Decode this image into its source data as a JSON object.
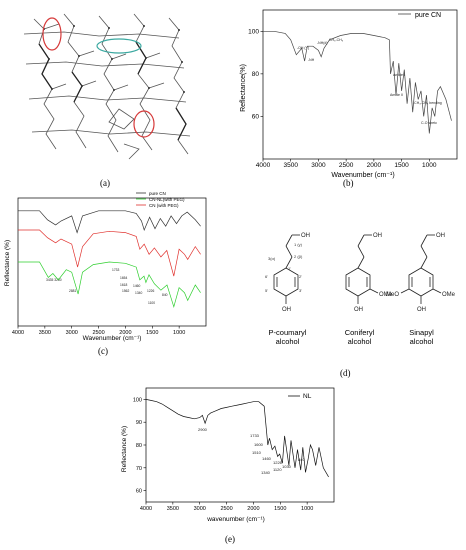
{
  "figure": {
    "labels": {
      "a": "(a)",
      "b": "(b)",
      "c": "(c)",
      "d": "(d)",
      "e": "(e)"
    }
  },
  "panel_b": {
    "legend": "pure CN",
    "ylabel": "Reflectance(%)",
    "xlabel": "Wavenumber (cm⁻¹)",
    "annotations": [
      "-OH (Y)",
      "-NH",
      "-NH(d)",
      "CH₃-CH₃",
      "Amide I",
      "Amide II",
      "-CH₃-CH₃ bending",
      "C-O stretc"
    ]
  },
  "panel_c": {
    "legend": [
      "pure CN",
      "CN-NL(with PEG)",
      "CN (with PEG)"
    ],
    "ylabel": "Reflectance (%)",
    "xlabel": "Wavenumber (cm⁻¹)",
    "annotations": [
      "3435 3250",
      "2881",
      "1733",
      "1654",
      "1618",
      "1562",
      "1460",
      "1340",
      "1226",
      "1100",
      "840"
    ]
  },
  "panel_d": {
    "structures": [
      {
        "name": "P-coumaryl\nalcohol"
      },
      {
        "name": "Coniferyl\nalcohol"
      },
      {
        "name": "Sinapyl\nalcohol"
      }
    ],
    "atom_labels": [
      "OH",
      "OMe",
      "MeO",
      "1 (γ)",
      "2 (β)",
      "3(α)",
      "1'",
      "2'",
      "3'",
      "5'",
      "6'"
    ]
  },
  "chart_data": [
    {
      "type": "line",
      "panel": "b",
      "x_reversed": true,
      "xlim": [
        4000,
        500
      ],
      "ylim": [
        40,
        110
      ],
      "xticks": [
        4000,
        3500,
        3000,
        2500,
        2000,
        1500,
        1000
      ],
      "yticks": [
        60,
        80,
        100
      ],
      "series": [
        {
          "name": "pure CN",
          "color": "#444444",
          "x": [
            4000,
            3800,
            3600,
            3500,
            3400,
            3300,
            3250,
            3200,
            3100,
            3000,
            2950,
            2900,
            2800,
            2600,
            2400,
            2200,
            2000,
            1800,
            1720,
            1700,
            1650,
            1600,
            1550,
            1500,
            1450,
            1400,
            1350,
            1300,
            1250,
            1200,
            1150,
            1100,
            1050,
            1000,
            950,
            900,
            850,
            800,
            700,
            600
          ],
          "y": [
            100,
            100,
            99,
            96,
            89,
            92,
            86,
            93,
            93,
            91,
            88,
            92,
            96,
            98,
            99,
            99,
            98,
            97,
            96,
            80,
            86,
            70,
            85,
            72,
            82,
            66,
            78,
            62,
            76,
            68,
            72,
            60,
            70,
            52,
            64,
            60,
            72,
            74,
            68,
            58
          ]
        }
      ]
    },
    {
      "type": "line",
      "panel": "c",
      "x_reversed": true,
      "xlim": [
        4000,
        500
      ],
      "xticks": [
        4000,
        3500,
        3000,
        2500,
        2000,
        1500,
        1000
      ],
      "yticks": [],
      "series": [
        {
          "name": "pure CN",
          "color": "#333333",
          "x": [
            4000,
            3600,
            3450,
            3300,
            3200,
            3000,
            2900,
            2800,
            2500,
            2200,
            2000,
            1800,
            1700,
            1650,
            1550,
            1450,
            1350,
            1250,
            1150,
            1050,
            950,
            850,
            700,
            600
          ],
          "y": [
            9.0,
            9.0,
            8.3,
            7.9,
            8.2,
            8.6,
            7.3,
            8.6,
            9.0,
            9.0,
            9.0,
            8.8,
            8.2,
            7.5,
            8.5,
            7.6,
            8.4,
            7.8,
            8.6,
            8.0,
            8.6,
            8.9,
            8.3,
            7.8
          ]
        },
        {
          "name": "CN (with PEG)",
          "color": "#e0312d",
          "x": [
            4000,
            3600,
            3450,
            3300,
            3200,
            3000,
            2890,
            2800,
            2600,
            2300,
            2000,
            1800,
            1733,
            1650,
            1560,
            1460,
            1340,
            1230,
            1100,
            1000,
            900,
            840,
            700,
            600
          ],
          "y": [
            7.5,
            7.5,
            6.9,
            6.5,
            6.8,
            6.4,
            4.6,
            6.2,
            7.2,
            7.4,
            7.3,
            7.0,
            6.0,
            6.4,
            5.6,
            6.1,
            5.4,
            5.9,
            3.9,
            6.0,
            5.6,
            5.2,
            6.2,
            5.6
          ]
        },
        {
          "name": "CN-NL(with PEG)",
          "color": "#2fcf2f",
          "x": [
            4000,
            3600,
            3435,
            3350,
            3250,
            3100,
            3000,
            2881,
            2800,
            2600,
            2300,
            2000,
            1800,
            1733,
            1654,
            1618,
            1562,
            1460,
            1340,
            1226,
            1100,
            1000,
            900,
            840,
            700,
            600
          ],
          "y": [
            5.0,
            5.0,
            3.8,
            4.1,
            3.6,
            4.4,
            4.2,
            2.5,
            4.2,
            4.8,
            5.0,
            4.9,
            4.6,
            3.6,
            3.9,
            3.4,
            4.0,
            3.3,
            2.8,
            3.2,
            1.5,
            3.0,
            2.6,
            2.0,
            3.2,
            2.6
          ]
        }
      ]
    },
    {
      "type": "line",
      "panel": "e",
      "x_reversed": true,
      "xlim": [
        4000,
        500
      ],
      "ylim": [
        55,
        105
      ],
      "xticks": [
        4000,
        3500,
        3000,
        2500,
        2000,
        1500,
        1000
      ],
      "yticks": [
        60,
        70,
        80,
        90,
        100
      ],
      "series": [
        {
          "name": "NL",
          "color": "#111111",
          "x": [
            4000,
            3900,
            3800,
            3700,
            3600,
            3500,
            3400,
            3300,
            3200,
            3100,
            3000,
            2950,
            2900,
            2850,
            2800,
            2700,
            2600,
            2500,
            2400,
            2300,
            2200,
            2100,
            2000,
            1900,
            1800,
            1733,
            1700,
            1650,
            1600,
            1550,
            1510,
            1460,
            1420,
            1340,
            1300,
            1226,
            1180,
            1120,
            1080,
            1030,
            980,
            940,
            900,
            840,
            780,
            700,
            600
          ],
          "y": [
            100,
            99.5,
            99,
            98,
            96.5,
            95,
            93.5,
            92.5,
            92,
            91.5,
            92,
            93,
            89.5,
            93,
            94,
            95,
            96,
            96.5,
            97,
            97.5,
            98,
            98.5,
            99,
            99,
            97,
            80,
            83,
            78,
            79.5,
            75,
            76,
            72,
            84,
            71,
            82,
            70,
            78,
            69,
            79,
            68,
            74,
            80,
            78,
            71,
            79,
            70,
            66
          ]
        }
      ]
    }
  ],
  "panel_e": {
    "legend": "NL",
    "ylabel": "Reflectance (%)",
    "xlabel": "wavenumber (cm⁻¹)",
    "annotations": [
      "2900",
      "1733",
      "1600",
      "1510",
      "1460",
      "1340",
      "1226",
      "1120",
      "1030",
      "840"
    ]
  }
}
